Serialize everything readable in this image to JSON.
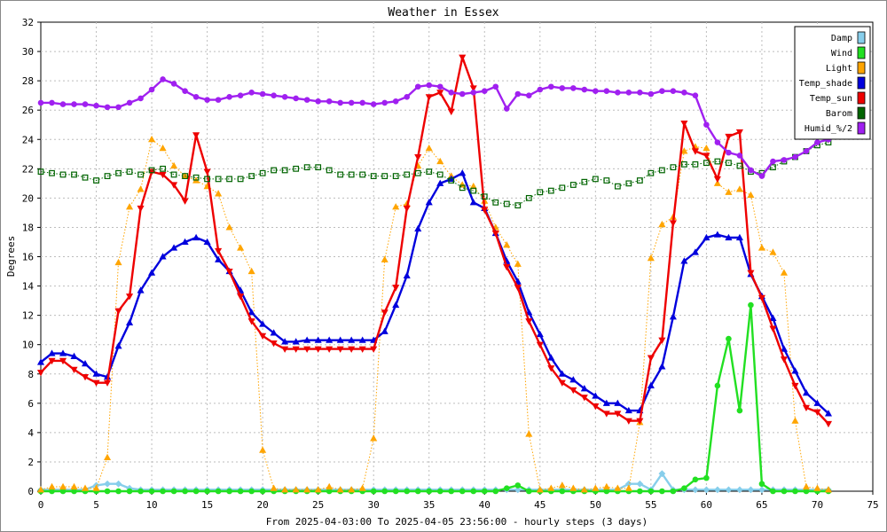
{
  "chart_data": {
    "type": "line",
    "title": "Weather in Essex",
    "xlabel": "From 2025-04-03:00 To 2025-04-05 23:56:00 - hourly steps (3 days)",
    "ylabel": "Degrees",
    "xlim": [
      0,
      75
    ],
    "ylim": [
      0,
      32
    ],
    "xticks": [
      "0",
      "5",
      "10",
      "15",
      "20",
      "25",
      "30",
      "35",
      "40",
      "45",
      "50",
      "55",
      "60",
      "65",
      "70",
      "75"
    ],
    "yticks": [
      "0",
      "2",
      "4",
      "6",
      "8",
      "10",
      "12",
      "14",
      "16",
      "18",
      "20",
      "22",
      "24",
      "26",
      "28",
      "30",
      "32"
    ],
    "grid": true,
    "legend_position": "top-right",
    "series": [
      {
        "name": "Damp",
        "color": "#87ceeb",
        "marker": "diamond",
        "line": "solid",
        "values": [
          0.1,
          0.1,
          0.1,
          0.1,
          0.1,
          0.4,
          0.5,
          0.5,
          0.2,
          0.1,
          0.1,
          0.1,
          0.1,
          0.1,
          0.1,
          0.1,
          0.1,
          0.1,
          0.1,
          0.1,
          0.1,
          0.1,
          0.1,
          0.1,
          0.1,
          0.1,
          0.1,
          0.1,
          0.1,
          0.1,
          0.1,
          0.1,
          0.1,
          0.1,
          0.1,
          0.1,
          0.1,
          0.1,
          0.1,
          0.1,
          0.1,
          0.1,
          0.1,
          0.1,
          0.1,
          0.1,
          0.1,
          0.1,
          0.1,
          0.1,
          0.1,
          0.1,
          0.1,
          0.5,
          0.5,
          0.1,
          1.2,
          0.1,
          0.1,
          0.1,
          0.1,
          0.1,
          0.1,
          0.1,
          0.1,
          0.1,
          0.1,
          0.1,
          0.1,
          0.1,
          0.1,
          0.1
        ]
      },
      {
        "name": "Wind",
        "color": "#22e022",
        "marker": "circle",
        "line": "solid",
        "values": [
          0,
          0,
          0,
          0,
          0,
          0,
          0,
          0,
          0,
          0,
          0,
          0,
          0,
          0,
          0,
          0,
          0,
          0,
          0,
          0,
          0,
          0,
          0,
          0,
          0,
          0,
          0,
          0,
          0,
          0,
          0,
          0,
          0,
          0,
          0,
          0,
          0,
          0,
          0,
          0,
          0,
          0,
          0.2,
          0.4,
          0,
          0,
          0,
          0,
          0,
          0,
          0,
          0,
          0,
          0,
          0,
          0,
          0,
          0,
          0.2,
          0.8,
          0.9,
          7.2,
          10.4,
          5.5,
          12.7,
          0.5,
          0,
          0,
          0,
          0,
          0,
          0
        ]
      },
      {
        "name": "Light",
        "color": "#ffa500",
        "marker": "triangle-up",
        "line": "dotted",
        "values": [
          0.1,
          0.3,
          0.3,
          0.3,
          0.2,
          0.2,
          2.3,
          15.6,
          19.4,
          20.6,
          24.0,
          23.4,
          22.2,
          21.5,
          21.2,
          20.8,
          20.3,
          18.0,
          16.6,
          15.0,
          2.8,
          0.2,
          0.1,
          0.1,
          0.1,
          0.1,
          0.3,
          0.1,
          0.1,
          0.2,
          3.6,
          15.8,
          19.4,
          19.6,
          22.2,
          23.4,
          22.5,
          21.5,
          20.9,
          20.8,
          19.8,
          18.0,
          16.8,
          15.5,
          3.9,
          0.1,
          0.2,
          0.4,
          0.2,
          0.1,
          0.2,
          0.3,
          0.2,
          0.2,
          4.7,
          15.9,
          18.2,
          18.7,
          23.2,
          23.5,
          23.4,
          21.0,
          20.4,
          20.6,
          20.2,
          16.6,
          16.3,
          14.9,
          4.8,
          0.3,
          0.2,
          0.1
        ]
      },
      {
        "name": "Temp_shade",
        "color": "#0000dd",
        "marker": "triangle-up",
        "line": "solid",
        "values": [
          8.8,
          9.4,
          9.4,
          9.2,
          8.7,
          8.0,
          7.8,
          9.9,
          11.5,
          13.7,
          14.9,
          16.0,
          16.6,
          17.0,
          17.3,
          17.0,
          15.8,
          15.0,
          13.7,
          12.2,
          11.4,
          10.8,
          10.2,
          10.2,
          10.3,
          10.3,
          10.3,
          10.3,
          10.3,
          10.3,
          10.3,
          10.9,
          12.7,
          14.7,
          17.9,
          19.7,
          21.0,
          21.3,
          21.7,
          19.7,
          19.3,
          17.6,
          15.7,
          14.3,
          12.2,
          10.7,
          9.1,
          8.0,
          7.6,
          7.0,
          6.5,
          6.0,
          6.0,
          5.5,
          5.5,
          7.2,
          8.5,
          11.9,
          15.7,
          16.3,
          17.3,
          17.5,
          17.3,
          17.3,
          14.8,
          13.3,
          11.8,
          9.7,
          8.2,
          6.7,
          6.0,
          5.3
        ]
      },
      {
        "name": "Temp_sun",
        "color": "#ee0000",
        "marker": "triangle-down",
        "line": "solid",
        "values": [
          8.1,
          8.9,
          8.9,
          8.3,
          7.8,
          7.4,
          7.4,
          12.3,
          13.3,
          19.3,
          21.8,
          21.6,
          20.9,
          19.8,
          24.3,
          21.8,
          16.4,
          15.0,
          13.3,
          11.6,
          10.6,
          10.1,
          9.7,
          9.7,
          9.7,
          9.7,
          9.7,
          9.7,
          9.7,
          9.7,
          9.7,
          12.2,
          13.9,
          19.3,
          22.8,
          26.9,
          27.2,
          25.9,
          29.6,
          27.5,
          19.2,
          17.6,
          15.3,
          13.9,
          11.6,
          10.0,
          8.4,
          7.4,
          6.9,
          6.4,
          5.8,
          5.3,
          5.3,
          4.8,
          4.8,
          9.1,
          10.3,
          18.3,
          25.1,
          23.2,
          22.9,
          21.3,
          24.2,
          24.5,
          14.9,
          13.2,
          11.1,
          9.0,
          7.2,
          5.7,
          5.4,
          4.6
        ]
      },
      {
        "name": "Barom",
        "color": "#006400",
        "marker": "square",
        "line": "dotted",
        "values": [
          21.8,
          21.7,
          21.6,
          21.6,
          21.4,
          21.2,
          21.5,
          21.7,
          21.8,
          21.6,
          21.9,
          22.0,
          21.6,
          21.5,
          21.4,
          21.3,
          21.3,
          21.3,
          21.3,
          21.5,
          21.7,
          21.9,
          21.9,
          22.0,
          22.1,
          22.1,
          21.9,
          21.6,
          21.6,
          21.6,
          21.5,
          21.5,
          21.5,
          21.6,
          21.7,
          21.8,
          21.6,
          21.2,
          20.7,
          20.5,
          20.1,
          19.7,
          19.6,
          19.5,
          20.0,
          20.4,
          20.5,
          20.7,
          20.9,
          21.1,
          21.3,
          21.2,
          20.8,
          21.0,
          21.2,
          21.7,
          21.9,
          22.1,
          22.3,
          22.3,
          22.4,
          22.5,
          22.4,
          22.2,
          21.8,
          21.7,
          22.1,
          22.5,
          22.8,
          23.2,
          23.6,
          23.8
        ]
      },
      {
        "name": "Humid_%/2",
        "color": "#a020f0",
        "marker": "circle",
        "line": "solid",
        "values": [
          26.5,
          26.5,
          26.4,
          26.4,
          26.4,
          26.3,
          26.2,
          26.2,
          26.5,
          26.8,
          27.4,
          28.1,
          27.8,
          27.3,
          26.9,
          26.7,
          26.7,
          26.9,
          27.0,
          27.2,
          27.1,
          27.0,
          26.9,
          26.8,
          26.7,
          26.6,
          26.6,
          26.5,
          26.5,
          26.5,
          26.4,
          26.5,
          26.6,
          26.9,
          27.6,
          27.7,
          27.6,
          27.2,
          27.1,
          27.2,
          27.3,
          27.6,
          26.1,
          27.1,
          27.0,
          27.4,
          27.6,
          27.5,
          27.5,
          27.4,
          27.3,
          27.3,
          27.2,
          27.2,
          27.2,
          27.1,
          27.3,
          27.3,
          27.2,
          27.0,
          25.0,
          23.8,
          23.1,
          22.9,
          21.9,
          21.5,
          22.5,
          22.6,
          22.8,
          23.2,
          23.8,
          24.0
        ]
      }
    ]
  }
}
